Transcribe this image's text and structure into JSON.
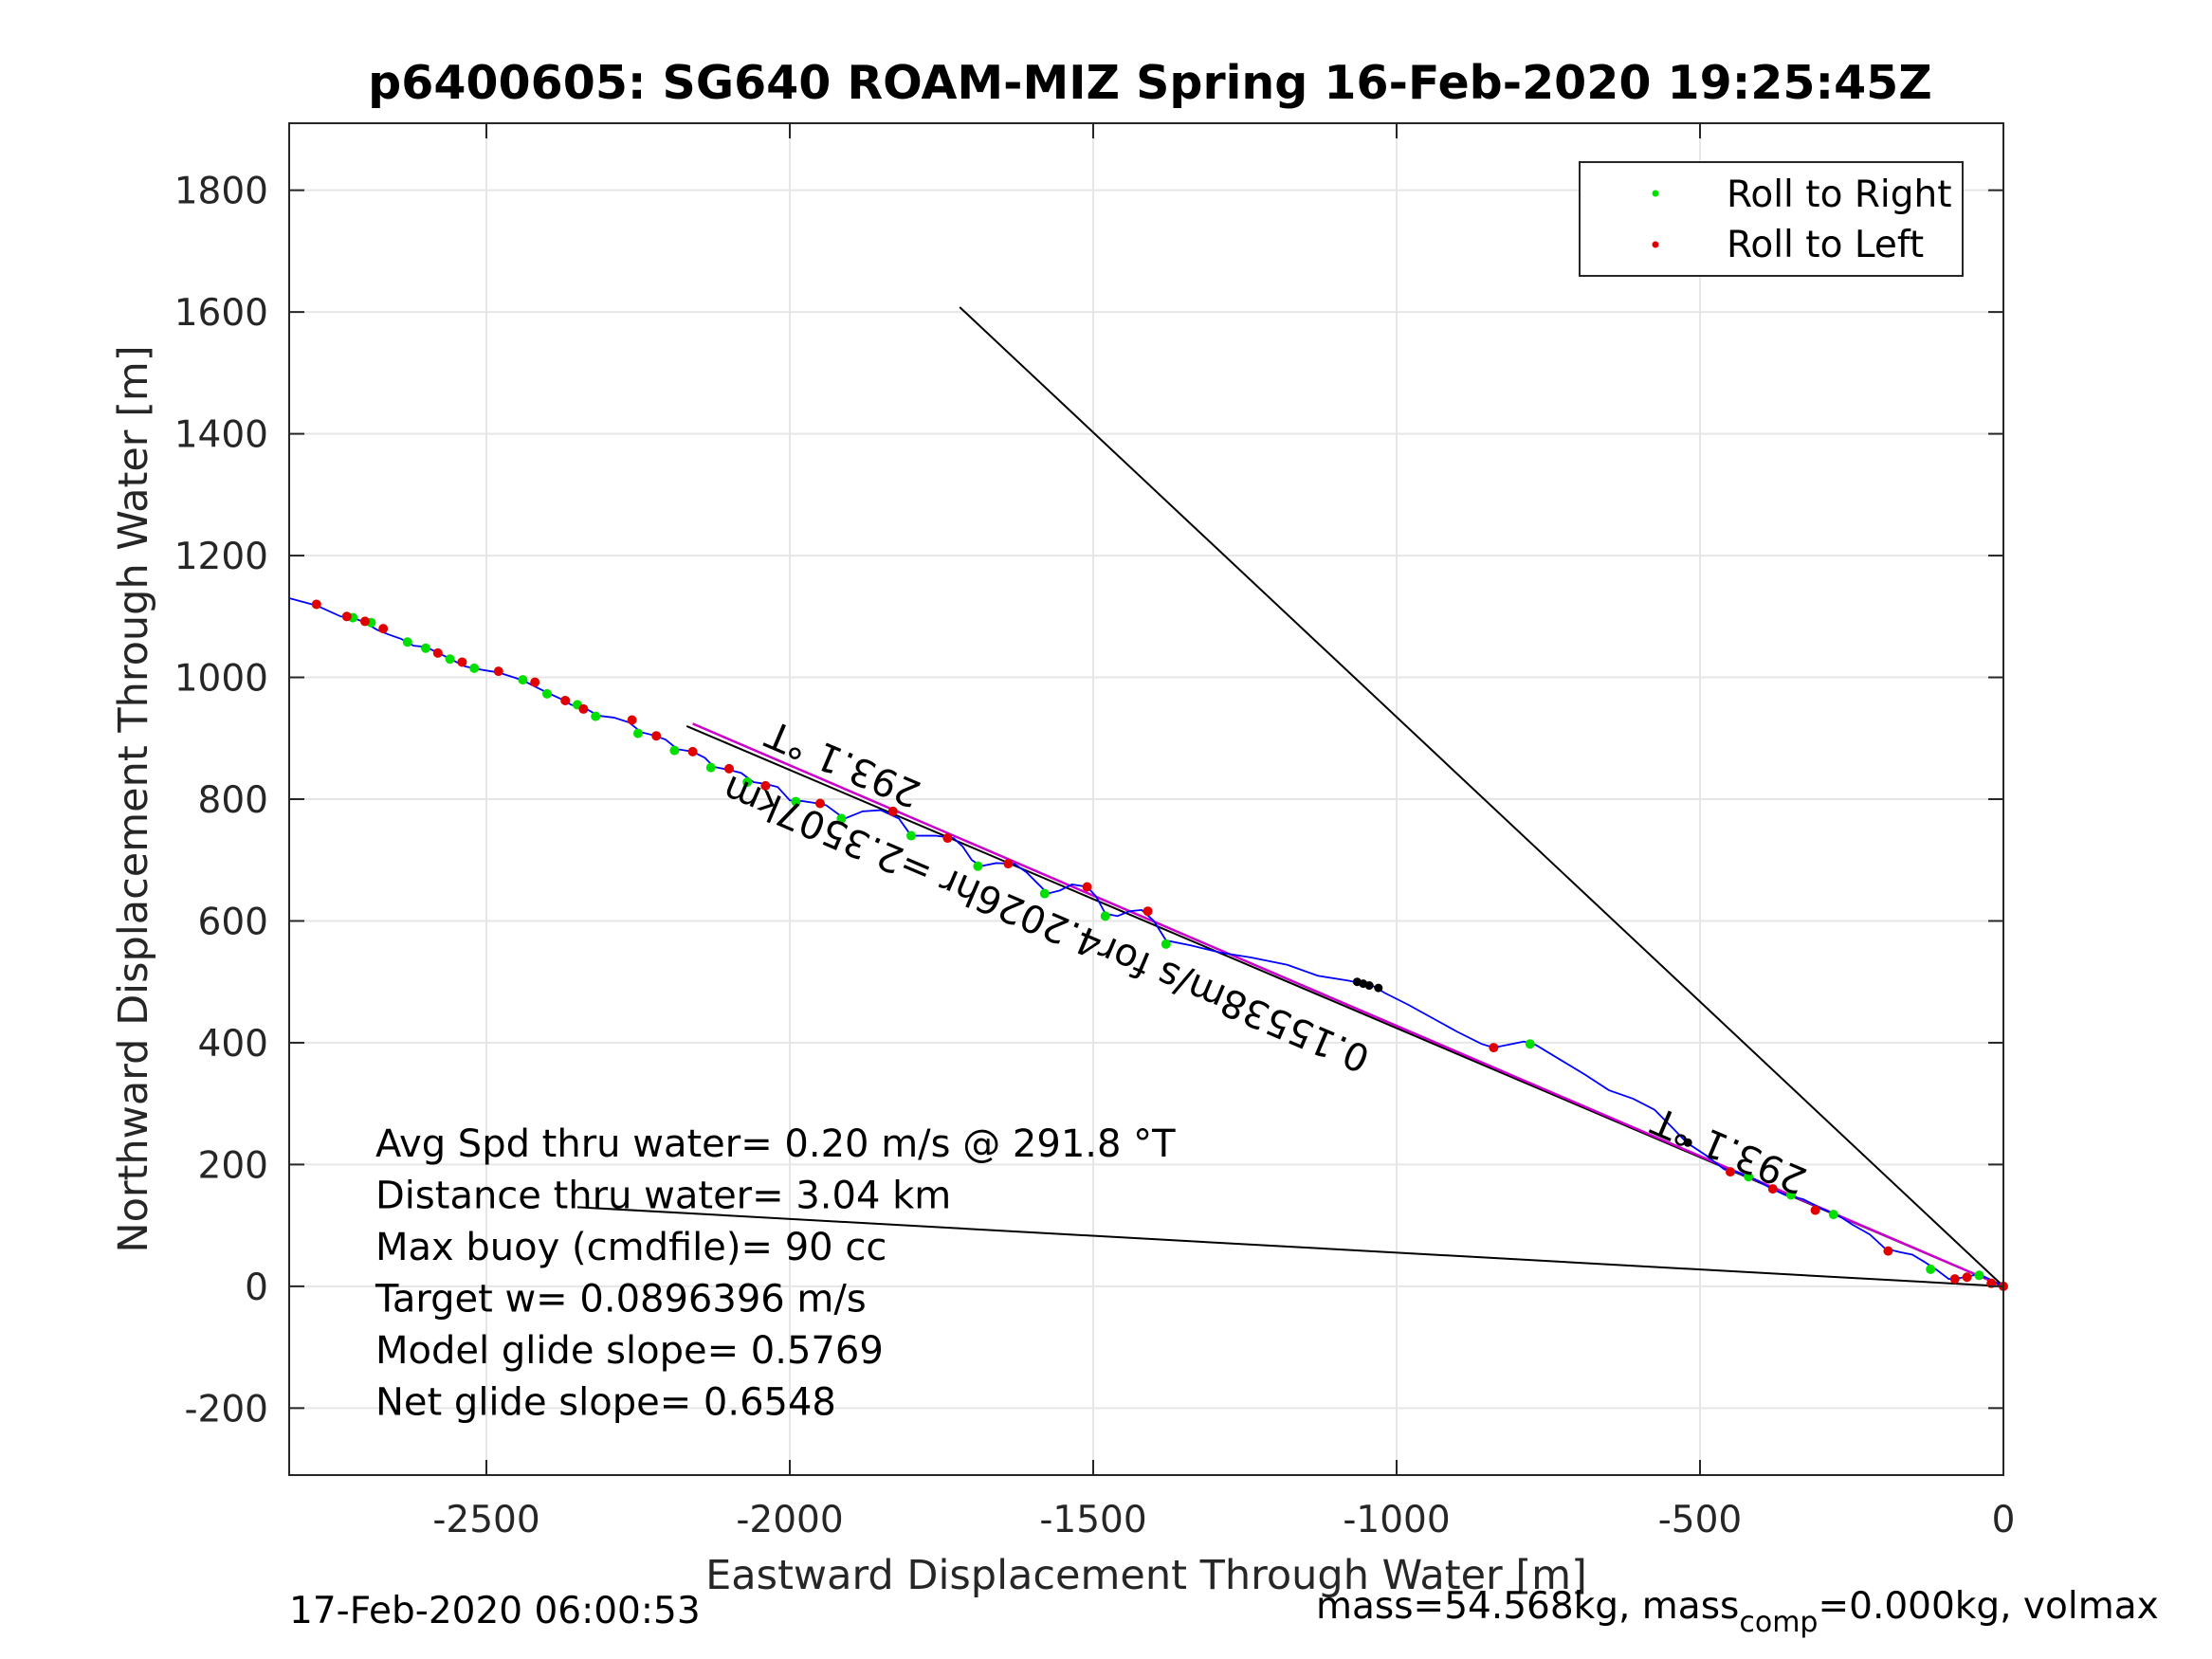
{
  "chart_data": {
    "type": "line",
    "title": "p6400605: SG640 ROAM-MIZ Spring 16-Feb-2020 19:25:45Z",
    "xlabel": "Eastward Displacement Through Water [m]",
    "ylabel": "Northward Displacement Through Water [m]",
    "xlim": [
      -2825,
      0
    ],
    "ylim": [
      -310,
      1910
    ],
    "x_ticks": [
      -2500,
      -2000,
      -1500,
      -1000,
      -500,
      0
    ],
    "x_tick_labels": [
      "-2500",
      "-2000",
      "-1500",
      "-1000",
      "-500",
      "0"
    ],
    "y_ticks": [
      -200,
      0,
      200,
      400,
      600,
      800,
      1000,
      1200,
      1400,
      1600,
      1800
    ],
    "y_tick_labels": [
      "-200",
      "0",
      "200",
      "400",
      "600",
      "800",
      "1000",
      "1200",
      "1400",
      "1600",
      "1800"
    ],
    "grid": true,
    "legend_position": "top-right",
    "legend": [
      {
        "label": "Roll to Right",
        "color": "#00e000"
      },
      {
        "label": "Roll to Left",
        "color": "#e00000"
      }
    ],
    "track": {
      "color": "#0000ff",
      "points": [
        [
          -2825,
          1130
        ],
        [
          -2780,
          1118
        ],
        [
          -2740,
          1100
        ],
        [
          -2720,
          1098
        ],
        [
          -2700,
          1090
        ],
        [
          -2680,
          1078
        ],
        [
          -2660,
          1070
        ],
        [
          -2640,
          1063
        ],
        [
          -2620,
          1052
        ],
        [
          -2600,
          1050
        ],
        [
          -2575,
          1038
        ],
        [
          -2555,
          1028
        ],
        [
          -2535,
          1018
        ],
        [
          -2505,
          1012
        ],
        [
          -2480,
          1008
        ],
        [
          -2455,
          1000
        ],
        [
          -2440,
          995
        ],
        [
          -2420,
          985
        ],
        [
          -2400,
          975
        ],
        [
          -2380,
          966
        ],
        [
          -2360,
          955
        ],
        [
          -2335,
          948
        ],
        [
          -2315,
          937
        ],
        [
          -2290,
          934
        ],
        [
          -2265,
          926
        ],
        [
          -2245,
          910
        ],
        [
          -2225,
          905
        ],
        [
          -2205,
          898
        ],
        [
          -2185,
          882
        ],
        [
          -2160,
          878
        ],
        [
          -2140,
          868
        ],
        [
          -2125,
          853
        ],
        [
          -2100,
          848
        ],
        [
          -2080,
          843
        ],
        [
          -2060,
          828
        ],
        [
          -2040,
          825
        ],
        [
          -2020,
          820
        ],
        [
          -2000,
          798
        ],
        [
          -1980,
          797
        ],
        [
          -1960,
          794
        ],
        [
          -1940,
          790
        ],
        [
          -1910,
          768
        ],
        [
          -1880,
          780
        ],
        [
          -1850,
          782
        ],
        [
          -1820,
          768
        ],
        [
          -1800,
          740
        ],
        [
          -1760,
          740
        ],
        [
          -1730,
          736
        ],
        [
          -1715,
          722
        ],
        [
          -1700,
          700
        ],
        [
          -1685,
          690
        ],
        [
          -1660,
          695
        ],
        [
          -1630,
          694
        ],
        [
          -1610,
          680
        ],
        [
          -1590,
          660
        ],
        [
          -1575,
          645
        ],
        [
          -1555,
          650
        ],
        [
          -1535,
          660
        ],
        [
          -1510,
          656
        ],
        [
          -1495,
          640
        ],
        [
          -1480,
          612
        ],
        [
          -1460,
          608
        ],
        [
          -1440,
          616
        ],
        [
          -1420,
          618
        ],
        [
          -1400,
          600
        ],
        [
          -1380,
          568
        ],
        [
          -1340,
          560
        ],
        [
          -1290,
          548
        ],
        [
          -1240,
          540
        ],
        [
          -1180,
          528
        ],
        [
          -1130,
          510
        ],
        [
          -1080,
          502
        ],
        [
          -1060,
          498
        ],
        [
          -1040,
          494
        ],
        [
          -1020,
          482
        ],
        [
          -980,
          462
        ],
        [
          -940,
          440
        ],
        [
          -900,
          418
        ],
        [
          -860,
          398
        ],
        [
          -840,
          392
        ],
        [
          -810,
          398
        ],
        [
          -790,
          402
        ],
        [
          -770,
          396
        ],
        [
          -730,
          372
        ],
        [
          -690,
          348
        ],
        [
          -650,
          322
        ],
        [
          -610,
          308
        ],
        [
          -575,
          290
        ],
        [
          -545,
          260
        ],
        [
          -522,
          236
        ],
        [
          -490,
          215
        ],
        [
          -460,
          192
        ],
        [
          -440,
          188
        ],
        [
          -410,
          176
        ],
        [
          -385,
          162
        ],
        [
          -360,
          150
        ],
        [
          -330,
          143
        ],
        [
          -300,
          128
        ],
        [
          -270,
          115
        ],
        [
          -250,
          102
        ],
        [
          -220,
          85
        ],
        [
          -195,
          62
        ],
        [
          -170,
          56
        ],
        [
          -150,
          52
        ],
        [
          -130,
          40
        ],
        [
          -110,
          27
        ],
        [
          -90,
          12
        ],
        [
          -70,
          14
        ],
        [
          -55,
          17
        ],
        [
          -40,
          20
        ],
        [
          -30,
          15
        ],
        [
          -15,
          8
        ],
        [
          0,
          0
        ]
      ]
    },
    "roll_right": [
      [
        -2720,
        1098
      ],
      [
        -2690,
        1090
      ],
      [
        -2630,
        1058
      ],
      [
        -2600,
        1048
      ],
      [
        -2560,
        1030
      ],
      [
        -2520,
        1015
      ],
      [
        -2440,
        996
      ],
      [
        -2400,
        973
      ],
      [
        -2350,
        955
      ],
      [
        -2320,
        936
      ],
      [
        -2250,
        908
      ],
      [
        -2190,
        880
      ],
      [
        -2130,
        852
      ],
      [
        -2070,
        828
      ],
      [
        -1990,
        796
      ],
      [
        -1915,
        768
      ],
      [
        -1800,
        740
      ],
      [
        -1690,
        690
      ],
      [
        -1580,
        645
      ],
      [
        -1480,
        608
      ],
      [
        -1380,
        562
      ],
      [
        -780,
        398
      ],
      [
        -420,
        180
      ],
      [
        -350,
        150
      ],
      [
        -280,
        118
      ],
      [
        -120,
        28
      ],
      [
        -40,
        18
      ]
    ],
    "roll_left": [
      [
        -2780,
        1120
      ],
      [
        -2730,
        1100
      ],
      [
        -2700,
        1092
      ],
      [
        -2670,
        1080
      ],
      [
        -2580,
        1040
      ],
      [
        -2540,
        1025
      ],
      [
        -2480,
        1010
      ],
      [
        -2420,
        992
      ],
      [
        -2370,
        962
      ],
      [
        -2340,
        948
      ],
      [
        -2260,
        930
      ],
      [
        -2220,
        904
      ],
      [
        -2160,
        878
      ],
      [
        -2100,
        850
      ],
      [
        -2040,
        822
      ],
      [
        -1950,
        793
      ],
      [
        -1830,
        780
      ],
      [
        -1740,
        736
      ],
      [
        -1640,
        694
      ],
      [
        -1510,
        656
      ],
      [
        -1410,
        616
      ],
      [
        -840,
        392
      ],
      [
        -450,
        188
      ],
      [
        -380,
        160
      ],
      [
        -310,
        125
      ],
      [
        -190,
        58
      ],
      [
        -80,
        12
      ],
      [
        -60,
        15
      ],
      [
        -20,
        5
      ],
      [
        0,
        0
      ]
    ],
    "black_markers": [
      [
        -1065,
        500
      ],
      [
        -1055,
        497
      ],
      [
        -1045,
        494
      ],
      [
        -1030,
        490
      ],
      [
        -520,
        236
      ]
    ],
    "lines": [
      {
        "color": "#000000",
        "points": [
          [
            -1720,
            1608
          ],
          [
            0,
            0
          ]
        ]
      },
      {
        "color": "#000000",
        "points": [
          [
            -2170,
            920
          ],
          [
            0,
            0
          ]
        ]
      },
      {
        "color": "#cc00cc",
        "points": [
          [
            -2160,
            924
          ],
          [
            0,
            0
          ]
        ]
      },
      {
        "color": "#000000",
        "points": [
          [
            -2350,
            130
          ],
          [
            0,
            0
          ]
        ]
      }
    ],
    "rotated_labels": [
      {
        "text": "293.1 °T",
        "x": -1780,
        "y": 825,
        "angle": 203.1
      },
      {
        "text": "0.15538m/s for4.2026hr =2.3507km",
        "x": -1040,
        "y": 390,
        "angle": 203.1
      },
      {
        "text": "293.1 °T",
        "x": -320,
        "y": 190,
        "angle": 203.1
      }
    ],
    "stats": [
      "Avg Spd thru water=  0.20 m/s @ 291.8 °T",
      "Distance thru water=  3.04 km",
      "Max buoy (cmdfile)= 90 cc",
      "Target w= 0.0896396 m/s",
      "Model glide slope= 0.5769",
      "Net glide slope= 0.6548"
    ],
    "footer_left": "17-Feb-2020 06:00:53",
    "footer_right": {
      "mass_prefix": "mass=54.568kg, mass",
      "mass_sub": "comp",
      "mass_suffix": "=0.000kg, volmax"
    }
  }
}
